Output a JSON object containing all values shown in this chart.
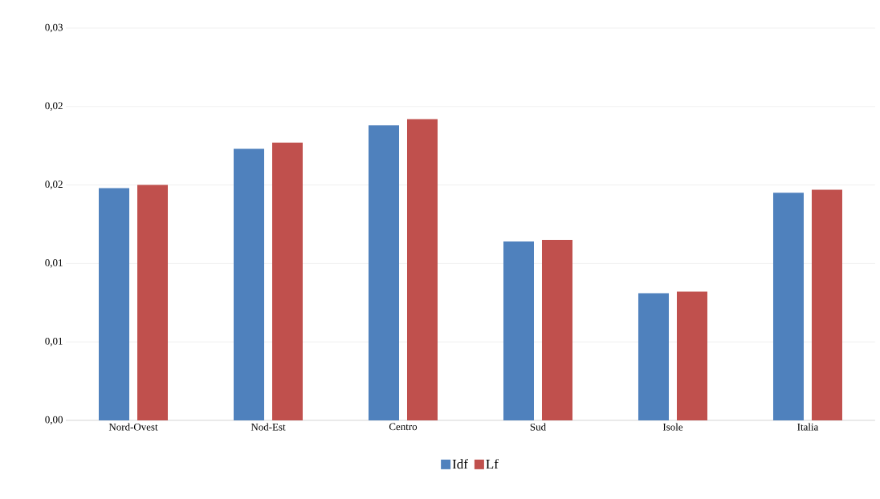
{
  "chart_data": {
    "type": "bar",
    "categories": [
      "Nord-Ovest",
      "Nod-Est",
      "Centro",
      "Sud",
      "Isole",
      "Italia"
    ],
    "series": [
      {
        "name": "Idf",
        "color": "#4f81bd",
        "values": [
          0.0148,
          0.0173,
          0.0188,
          0.0114,
          0.0081,
          0.0145
        ]
      },
      {
        "name": "Lf",
        "color": "#c0504d",
        "values": [
          0.015,
          0.0177,
          0.0192,
          0.0115,
          0.0082,
          0.0147
        ]
      }
    ],
    "ylim": [
      0,
      0.025
    ],
    "yticks": [
      {
        "value": 0,
        "label": "0,00"
      },
      {
        "value": 0.005,
        "label": "0,01"
      },
      {
        "value": 0.01,
        "label": "0,01"
      },
      {
        "value": 0.015,
        "label": "0,02"
      },
      {
        "value": 0.02,
        "label": "0,02"
      },
      {
        "value": 0.025,
        "label": "0,03"
      }
    ],
    "grid": "y",
    "legend": "bottom"
  }
}
